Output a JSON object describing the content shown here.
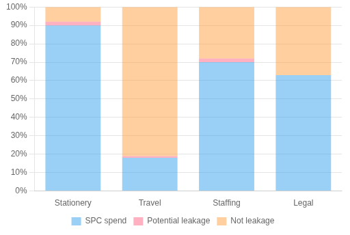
{
  "chart_data": {
    "type": "bar",
    "stacked": true,
    "categories": [
      "Stationery",
      "Travel",
      "Staffing",
      "Legal"
    ],
    "series": [
      {
        "name": "SPC spend",
        "values": [
          90,
          18,
          70,
          63
        ]
      },
      {
        "name": "Potential leakage",
        "values": [
          2,
          1,
          2,
          0
        ]
      },
      {
        "name": "Not leakage",
        "values": [
          8,
          81,
          28,
          37
        ]
      }
    ],
    "ylim": [
      0,
      100
    ],
    "yticks": [
      {
        "value": 0,
        "label": "0%"
      },
      {
        "value": 10,
        "label": "10%"
      },
      {
        "value": 20,
        "label": "20%"
      },
      {
        "value": 30,
        "label": "30%"
      },
      {
        "value": 40,
        "label": "40%"
      },
      {
        "value": 50,
        "label": "50%"
      },
      {
        "value": 60,
        "label": "60%"
      },
      {
        "value": 70,
        "label": "70%"
      },
      {
        "value": 80,
        "label": "80%"
      },
      {
        "value": 90,
        "label": "90%"
      },
      {
        "value": 100,
        "label": "100%"
      }
    ],
    "grid": true,
    "legend": "bottom"
  }
}
